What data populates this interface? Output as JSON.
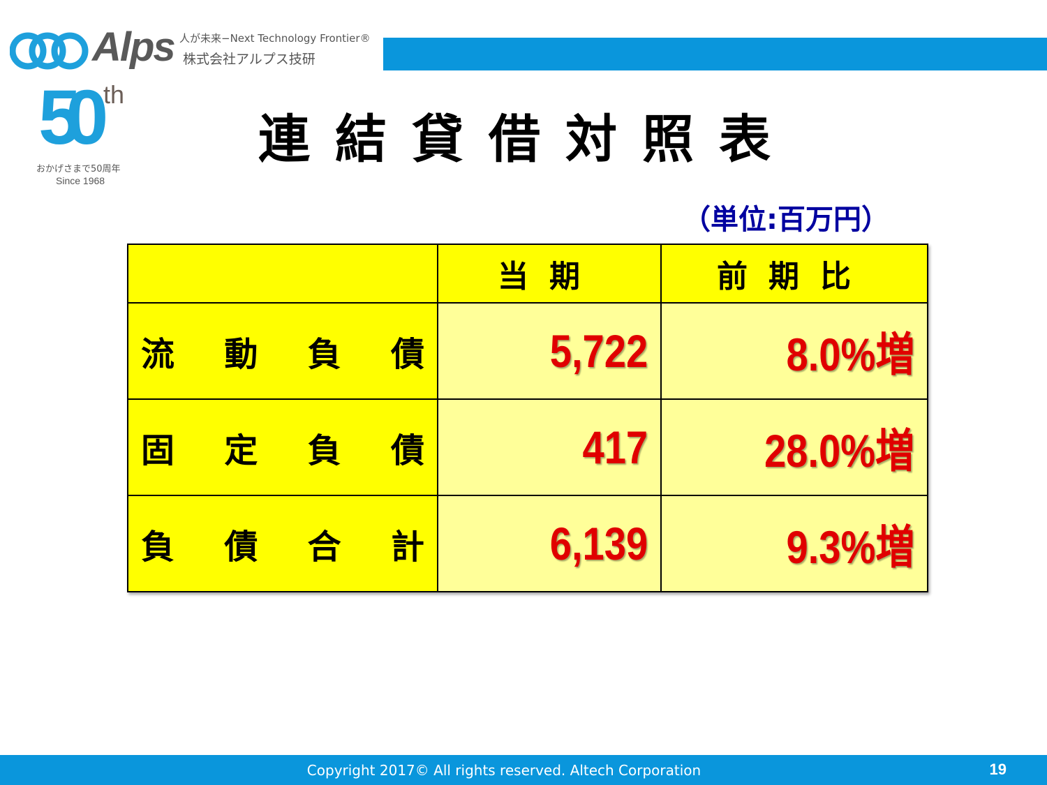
{
  "header": {
    "brand": "Alps",
    "tagline": "人が未来−Next Technology Frontier®",
    "company": "株式会社アルプス技研",
    "anniversary": {
      "number": "50",
      "suffix": "th",
      "message": "おかげさまで50周年",
      "since": "Since 1968"
    },
    "brand_color": "#0A96DC"
  },
  "title": "連結貸借対照表",
  "unit": "（単位:百万円）",
  "table": {
    "headers": [
      "",
      "当期",
      "前期比"
    ],
    "rows": [
      {
        "label": "流動負債",
        "value": "5,722",
        "change": "8.0%増"
      },
      {
        "label": "固定負債",
        "value": "417",
        "change": "28.0%増"
      },
      {
        "label": "負債合計",
        "value": "6,139",
        "change": "9.3%増"
      }
    ],
    "colors": {
      "header_bg": "#FFFF00",
      "value_bg": "#FFFF99",
      "value_text": "#E00000"
    }
  },
  "footer": {
    "copyright": "Copyright 2017© All rights reserved. Altech Corporation",
    "page": "19"
  }
}
